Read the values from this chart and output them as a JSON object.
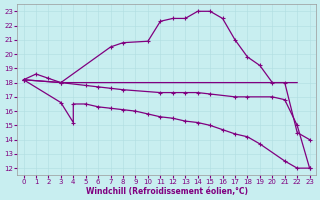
{
  "bg_color": "#c8eef0",
  "line_color": "#800080",
  "grid_color": "#b0dde0",
  "xlabel": "Windchill (Refroidissement éolien,°C)",
  "xlabel_color": "#800080",
  "tick_color": "#800080",
  "xlim": [
    -0.5,
    23.5
  ],
  "ylim": [
    11.5,
    23.5
  ],
  "yticks": [
    12,
    13,
    14,
    15,
    16,
    17,
    18,
    19,
    20,
    21,
    22,
    23
  ],
  "xticks": [
    0,
    1,
    2,
    3,
    4,
    5,
    6,
    7,
    8,
    9,
    10,
    11,
    12,
    13,
    14,
    15,
    16,
    17,
    18,
    19,
    20,
    21,
    22,
    23
  ],
  "line1_x": [
    0,
    1,
    2,
    3,
    7,
    8,
    10,
    11,
    12,
    13,
    14,
    15,
    16,
    17,
    18,
    19,
    20,
    21,
    22,
    23
  ],
  "line1_y": [
    18.2,
    18.6,
    18.3,
    18.0,
    20.5,
    20.8,
    20.9,
    22.3,
    22.5,
    22.5,
    23.0,
    23.0,
    22.5,
    21.0,
    19.8,
    19.2,
    18.0,
    18.0,
    14.5,
    14.0
  ],
  "line2_x": [
    0,
    3,
    22
  ],
  "line2_y": [
    18.2,
    18.0,
    18.0
  ],
  "line3_x": [
    0,
    3,
    5,
    6,
    7,
    8,
    11,
    12,
    13,
    14,
    15,
    17,
    18,
    20,
    21,
    22,
    23
  ],
  "line3_y": [
    18.2,
    18.0,
    17.8,
    17.7,
    17.6,
    17.5,
    17.3,
    17.3,
    17.3,
    17.3,
    17.2,
    17.0,
    17.0,
    17.0,
    16.8,
    15.0,
    12.0
  ],
  "line4_x": [
    0,
    3,
    4,
    4,
    5,
    6,
    7,
    8,
    9,
    10,
    11,
    12,
    13,
    14,
    15,
    16,
    17,
    18,
    19,
    21,
    22,
    23
  ],
  "line4_y": [
    18.2,
    16.6,
    15.2,
    16.5,
    16.5,
    16.3,
    16.2,
    16.1,
    16.0,
    15.8,
    15.6,
    15.5,
    15.3,
    15.2,
    15.0,
    14.7,
    14.4,
    14.2,
    13.7,
    12.5,
    12.0,
    12.0
  ]
}
